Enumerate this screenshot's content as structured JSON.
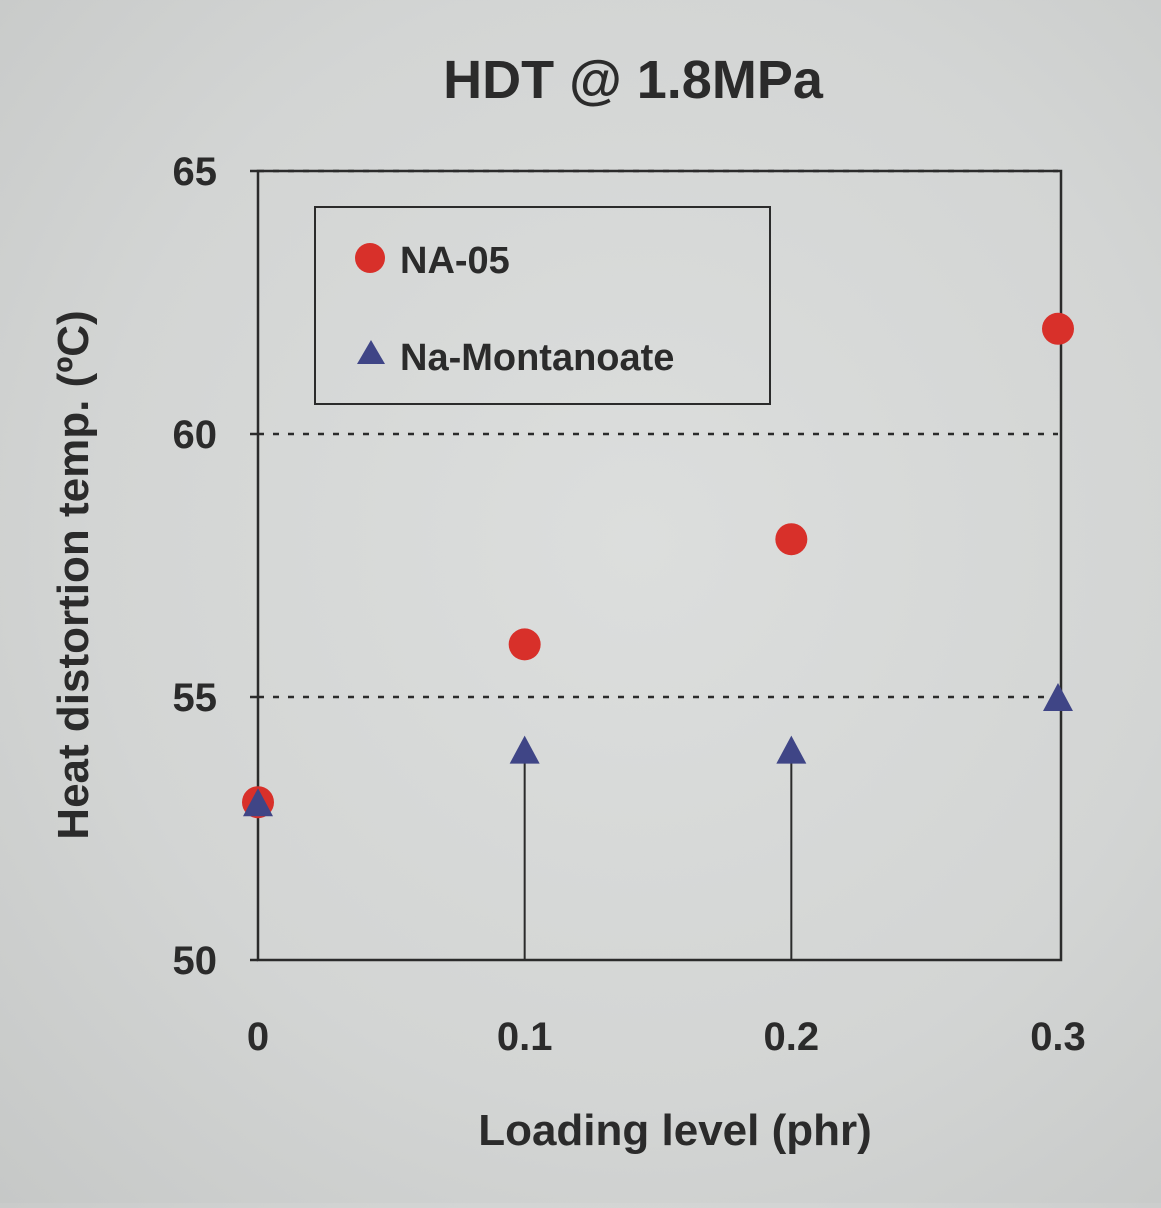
{
  "chart_data": {
    "type": "scatter",
    "title": "HDT @ 1.8MPa",
    "xlabel": "Loading level (phr)",
    "ylabel": "Heat distortion temp. (ºC)",
    "xlim": [
      0,
      0.3
    ],
    "ylim": [
      50,
      65
    ],
    "x_ticks": [
      "0",
      "0.1",
      "0.2",
      "0.3"
    ],
    "x_tick_values": [
      0,
      0.1,
      0.2,
      0.3
    ],
    "y_ticks": [
      "50",
      "55",
      "60",
      "65"
    ],
    "y_tick_values": [
      50,
      55,
      60,
      65
    ],
    "grid": "dotted horizontal lines at 55, 60 and 65",
    "legend_position": "top-left inside plot",
    "series": [
      {
        "name": "NA-05",
        "marker": "circle",
        "color": "#d8302a",
        "x": [
          0,
          0.1,
          0.2,
          0.3
        ],
        "y": [
          53.0,
          56.0,
          58.0,
          62.0
        ]
      },
      {
        "name": "Na-Montanoate",
        "marker": "triangle",
        "color": "#3f4586",
        "x": [
          0,
          0.1,
          0.2,
          0.3
        ],
        "y": [
          53.0,
          54.0,
          54.0,
          55.0
        ]
      }
    ]
  }
}
